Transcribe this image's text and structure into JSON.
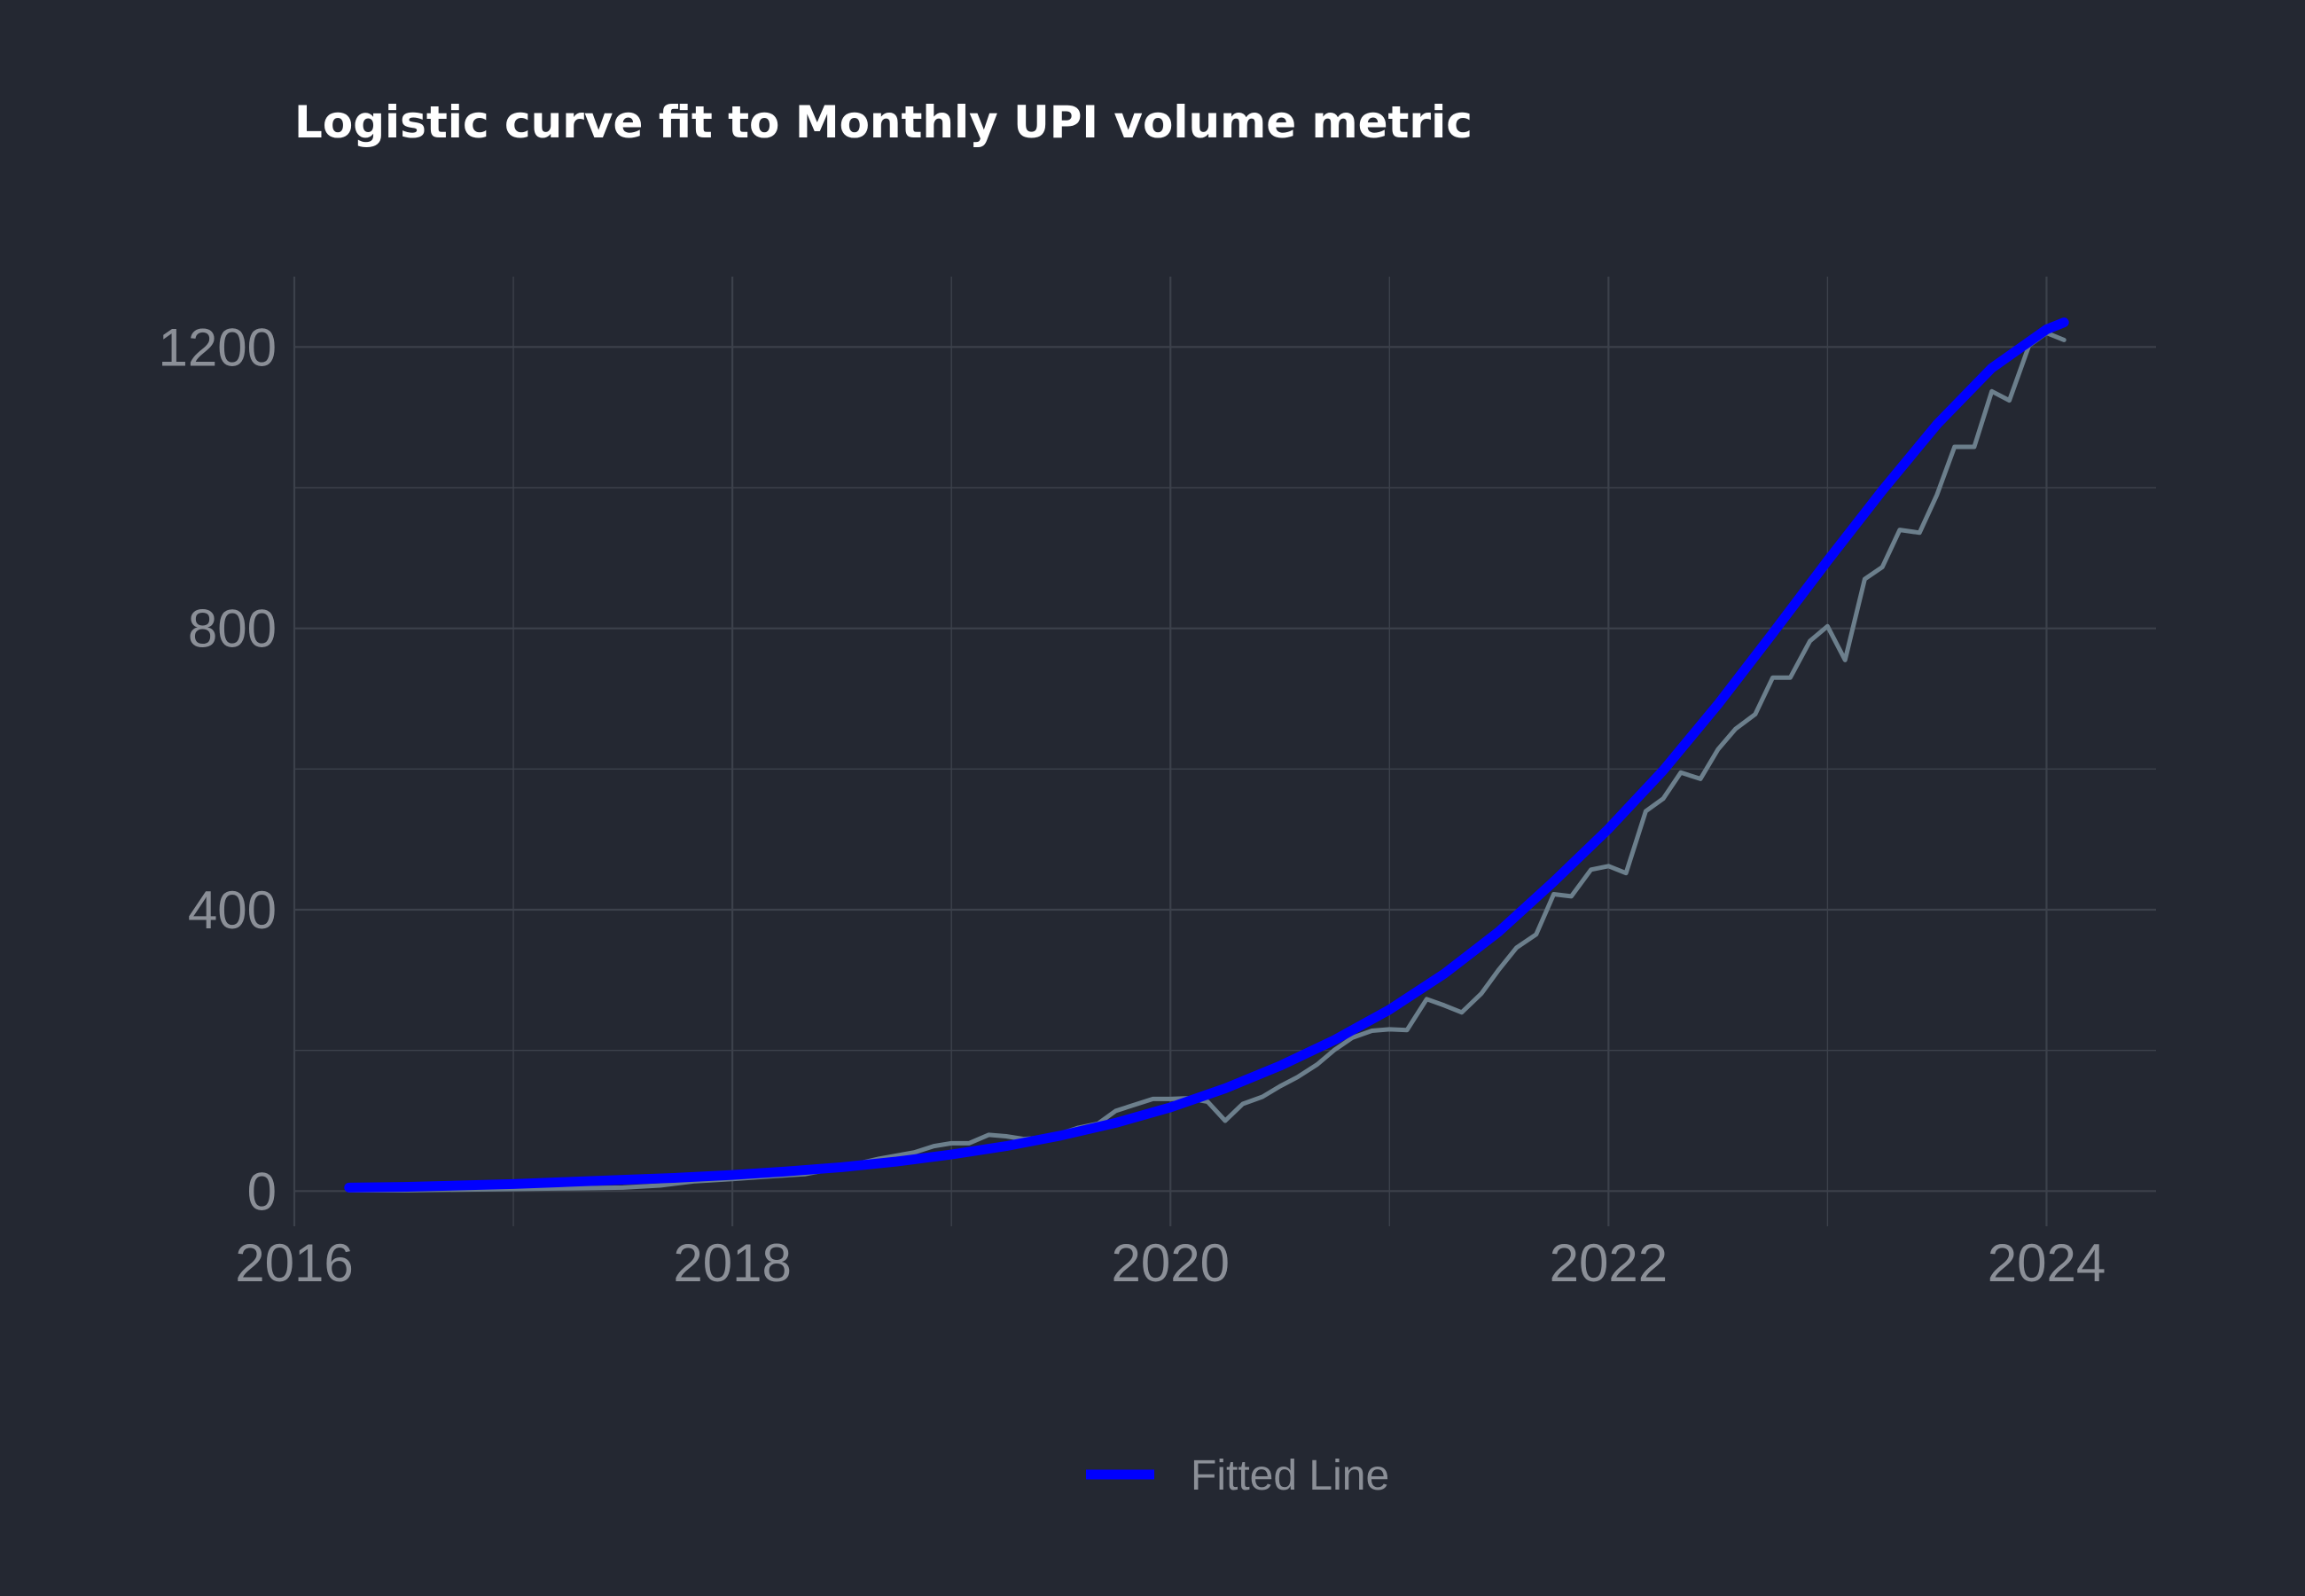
{
  "chart_data": {
    "type": "line",
    "title": "Logistic curve fit to Monthly UPI volume metric",
    "xlabel": "",
    "ylabel": "",
    "xlim": [
      2016,
      2024.5
    ],
    "ylim": [
      -50,
      1300
    ],
    "x_ticks": [
      2016,
      2018,
      2020,
      2022,
      2024
    ],
    "x_tick_labels": [
      "2016",
      "2018",
      "2020",
      "2022",
      "2024"
    ],
    "y_ticks": [
      0,
      400,
      800,
      1200
    ],
    "y_tick_labels": [
      "0",
      "400",
      "800",
      "1200"
    ],
    "grid": true,
    "legend": {
      "position": "bottom",
      "entries": [
        "Fitted Line"
      ]
    },
    "colors": {
      "background": "#242832",
      "grid": "#3c414b",
      "actual": "#6c7f8c",
      "fitted": "#0000ff",
      "text": "#8b8f97",
      "title": "#ffffff"
    },
    "series": [
      {
        "name": "",
        "role": "actual",
        "x": [
          2016.25,
          2016.5,
          2016.75,
          2017.0,
          2017.25,
          2017.5,
          2017.67,
          2017.83,
          2018.0,
          2018.17,
          2018.33,
          2018.5,
          2018.67,
          2018.83,
          2018.92,
          2019.0,
          2019.08,
          2019.17,
          2019.25,
          2019.33,
          2019.42,
          2019.5,
          2019.58,
          2019.67,
          2019.75,
          2019.83,
          2019.92,
          2020.0,
          2020.08,
          2020.17,
          2020.25,
          2020.33,
          2020.42,
          2020.5,
          2020.58,
          2020.67,
          2020.75,
          2020.83,
          2020.92,
          2021.0,
          2021.08,
          2021.17,
          2021.25,
          2021.33,
          2021.42,
          2021.5,
          2021.58,
          2021.67,
          2021.75,
          2021.83,
          2021.92,
          2022.0,
          2022.08,
          2022.17,
          2022.25,
          2022.33,
          2022.42,
          2022.5,
          2022.58,
          2022.67,
          2022.75,
          2022.83,
          2022.92,
          2023.0,
          2023.08,
          2023.17,
          2023.25,
          2023.33,
          2023.42,
          2023.5,
          2023.58,
          2023.67,
          2023.75,
          2023.83,
          2023.92,
          2024.0,
          2024.08
        ],
        "y": [
          1,
          1,
          2,
          3,
          4,
          5,
          8,
          14,
          17,
          21,
          24,
          34,
          46,
          55,
          64,
          68,
          68,
          80,
          78,
          74,
          76,
          82,
          90,
          96,
          114,
          122,
          131,
          131,
          132,
          127,
          100,
          124,
          134,
          149,
          162,
          180,
          201,
          218,
          228,
          230,
          229,
          273,
          264,
          254,
          281,
          315,
          346,
          365,
          422,
          419,
          457,
          462,
          452,
          540,
          558,
          595,
          586,
          628,
          657,
          678,
          730,
          730,
          782,
          803,
          755,
          870,
          887,
          940,
          936,
          990,
          1058,
          1058,
          1137,
          1124,
          1202,
          1220,
          1210
        ]
      },
      {
        "name": "Fitted Line",
        "role": "fitted",
        "x": [
          2016.25,
          2016.5,
          2016.75,
          2017.0,
          2017.25,
          2017.5,
          2017.75,
          2018.0,
          2018.25,
          2018.5,
          2018.75,
          2019.0,
          2019.25,
          2019.5,
          2019.75,
          2020.0,
          2020.25,
          2020.5,
          2020.75,
          2021.0,
          2021.25,
          2021.5,
          2021.75,
          2022.0,
          2022.25,
          2022.5,
          2022.75,
          2023.0,
          2023.25,
          2023.5,
          2023.75,
          2024.0,
          2024.08
        ],
        "y": [
          5,
          6,
          8,
          10,
          13,
          16,
          19,
          23,
          28,
          34,
          42,
          52,
          64,
          79,
          97,
          119,
          146,
          178,
          215,
          258,
          309,
          369,
          440,
          515,
          598,
          692,
          793,
          896,
          996,
          1090,
          1170,
          1225,
          1235
        ]
      }
    ]
  }
}
